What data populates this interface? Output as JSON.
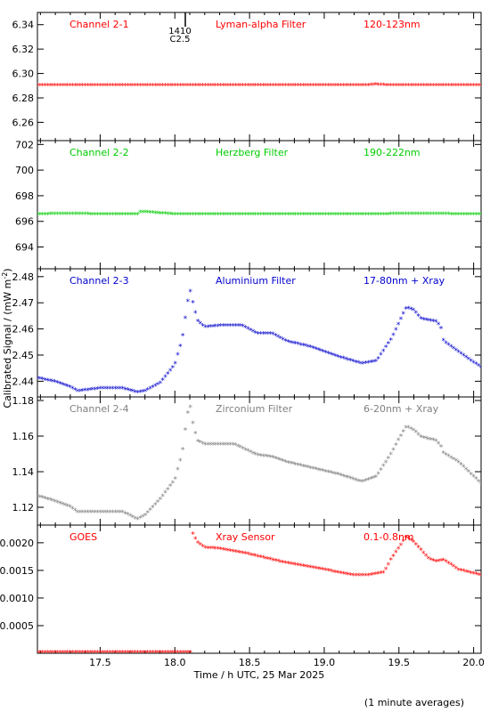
{
  "figure": {
    "xlabel": "Time / h UTC, 25 Mar 2025",
    "ylabel": "Calibrated Signal / (mW m",
    "ylabel_sup": "-2",
    "ylabel_close": ")",
    "footnote": "(1 minute averages)",
    "flare_marker": {
      "x": 18.05,
      "label_top": "1410",
      "label_bottom": "C2.5"
    }
  },
  "chart_data": [
    {
      "type": "scatter",
      "name": "Channel 2-1",
      "labels": [
        "Channel 2-1",
        "Lyman-alpha Filter",
        "120-123nm"
      ],
      "color": "#ff0000",
      "xlim": [
        17.08,
        20.05
      ],
      "ylim": [
        6.245,
        6.35
      ],
      "yticks": [
        6.26,
        6.28,
        6.3,
        6.32,
        6.34
      ],
      "ytick_labels": [
        "6.26",
        "6.28",
        "6.30",
        "6.32",
        "6.34"
      ],
      "x": [
        17.08,
        17.5,
        18.0,
        18.05,
        18.5,
        19.0,
        19.3,
        19.35,
        19.4,
        20.05
      ],
      "y": [
        6.29,
        6.29,
        6.29,
        6.29,
        6.29,
        6.29,
        6.29,
        6.2905,
        6.29,
        6.29
      ]
    },
    {
      "type": "scatter",
      "name": "Channel 2-2",
      "labels": [
        "Channel 2-2",
        "Herzberg Filter",
        "190-222nm"
      ],
      "color": "#00cc00",
      "xlim": [
        17.08,
        20.05
      ],
      "ylim": [
        692.3,
        702.3
      ],
      "yticks": [
        694,
        696,
        698,
        700,
        702
      ],
      "ytick_labels": [
        "694",
        "696",
        "698",
        "700",
        "702"
      ],
      "x": [
        17.08,
        17.3,
        17.5,
        17.75,
        17.77,
        18.0,
        18.5,
        19.0,
        19.4,
        19.5,
        20.05
      ],
      "y": [
        696.5,
        696.55,
        696.5,
        696.5,
        696.7,
        696.5,
        696.5,
        696.5,
        696.5,
        696.55,
        696.5
      ]
    },
    {
      "type": "scatter",
      "name": "Channel 2-3",
      "labels": [
        "Channel 2-3",
        "Aluminium Filter",
        "17-80nm + Xray"
      ],
      "color": "#0000cc",
      "xlim": [
        17.08,
        20.05
      ],
      "ylim": [
        2.434,
        2.483
      ],
      "yticks": [
        2.44,
        2.45,
        2.46,
        2.47,
        2.48
      ],
      "ytick_labels": [
        "2.44",
        "2.45",
        "2.46",
        "2.47",
        "2.48"
      ],
      "x": [
        17.08,
        17.2,
        17.3,
        17.35,
        17.5,
        17.65,
        17.75,
        17.8,
        17.9,
        18.0,
        18.05,
        18.08,
        18.1,
        18.12,
        18.15,
        18.2,
        18.3,
        18.4,
        18.45,
        18.55,
        18.65,
        18.75,
        18.9,
        19.1,
        19.25,
        19.35,
        19.45,
        19.5,
        19.55,
        19.6,
        19.65,
        19.75,
        19.78,
        19.8,
        19.9,
        20.05
      ],
      "y": [
        2.441,
        2.4395,
        2.4375,
        2.436,
        2.437,
        2.437,
        2.4355,
        2.436,
        2.439,
        2.446,
        2.456,
        2.468,
        2.475,
        2.47,
        2.463,
        2.4605,
        2.461,
        2.461,
        2.461,
        2.458,
        2.458,
        2.455,
        2.453,
        2.449,
        2.4465,
        2.4475,
        2.456,
        2.462,
        2.468,
        2.467,
        2.4635,
        2.4625,
        2.4605,
        2.455,
        2.451,
        2.445
      ]
    },
    {
      "type": "scatter",
      "name": "Channel 2-4",
      "labels": [
        "Channel 2-4",
        "Zirconium Filter",
        "6-20nm + Xray"
      ],
      "color": "#808080",
      "xlim": [
        17.08,
        20.05
      ],
      "ylim": [
        1.11,
        1.182
      ],
      "yticks": [
        1.12,
        1.14,
        1.16,
        1.18
      ],
      "ytick_labels": [
        "1.12",
        "1.14",
        "1.16",
        "1.18"
      ],
      "x": [
        17.08,
        17.2,
        17.3,
        17.35,
        17.5,
        17.65,
        17.75,
        17.8,
        17.9,
        18.0,
        18.05,
        18.08,
        18.1,
        18.12,
        18.15,
        18.2,
        18.3,
        18.4,
        18.45,
        18.55,
        18.65,
        18.75,
        18.9,
        19.1,
        19.25,
        19.35,
        19.45,
        19.5,
        19.55,
        19.6,
        19.65,
        19.75,
        19.78,
        19.8,
        19.9,
        20.05
      ],
      "y": [
        1.126,
        1.123,
        1.12,
        1.117,
        1.117,
        1.117,
        1.113,
        1.115,
        1.124,
        1.135,
        1.15,
        1.17,
        1.178,
        1.167,
        1.157,
        1.155,
        1.155,
        1.155,
        1.153,
        1.149,
        1.148,
        1.145,
        1.142,
        1.138,
        1.134,
        1.137,
        1.15,
        1.158,
        1.165,
        1.163,
        1.159,
        1.157,
        1.154,
        1.15,
        1.145,
        1.133
      ]
    },
    {
      "type": "scatter",
      "name": "GOES",
      "labels": [
        "GOES",
        "Xray Sensor",
        "0.1-0.8nm"
      ],
      "color": "#ff0000",
      "xlim": [
        17.08,
        20.05
      ],
      "ylim": [
        0,
        0.00232
      ],
      "yticks": [
        0.0005,
        0.001,
        0.0015,
        0.002
      ],
      "ytick_labels": [
        "0.0005",
        "0.0010",
        "0.0015",
        "0.0020"
      ],
      "x": [
        17.08,
        17.5,
        18.11,
        18.12,
        18.15,
        18.2,
        18.3,
        18.5,
        18.7,
        18.9,
        19.1,
        19.2,
        19.3,
        19.4,
        19.45,
        19.5,
        19.55,
        19.6,
        19.65,
        19.7,
        19.75,
        19.8,
        19.9,
        20.05
      ],
      "y": [
        1e-05,
        1e-05,
        1e-05,
        0.00215,
        0.002,
        0.0019,
        0.00188,
        0.00178,
        0.00165,
        0.00155,
        0.00145,
        0.0014,
        0.0014,
        0.00145,
        0.0017,
        0.0019,
        0.0021,
        0.002,
        0.00185,
        0.0017,
        0.00165,
        0.00168,
        0.0015,
        0.0014
      ]
    }
  ],
  "xaxis": {
    "ticks": [
      17.5,
      18.0,
      18.5,
      19.0,
      19.5,
      20.0
    ],
    "tick_labels": [
      "17.5",
      "18.0",
      "18.5",
      "19.0",
      "19.5",
      "20.0"
    ]
  }
}
